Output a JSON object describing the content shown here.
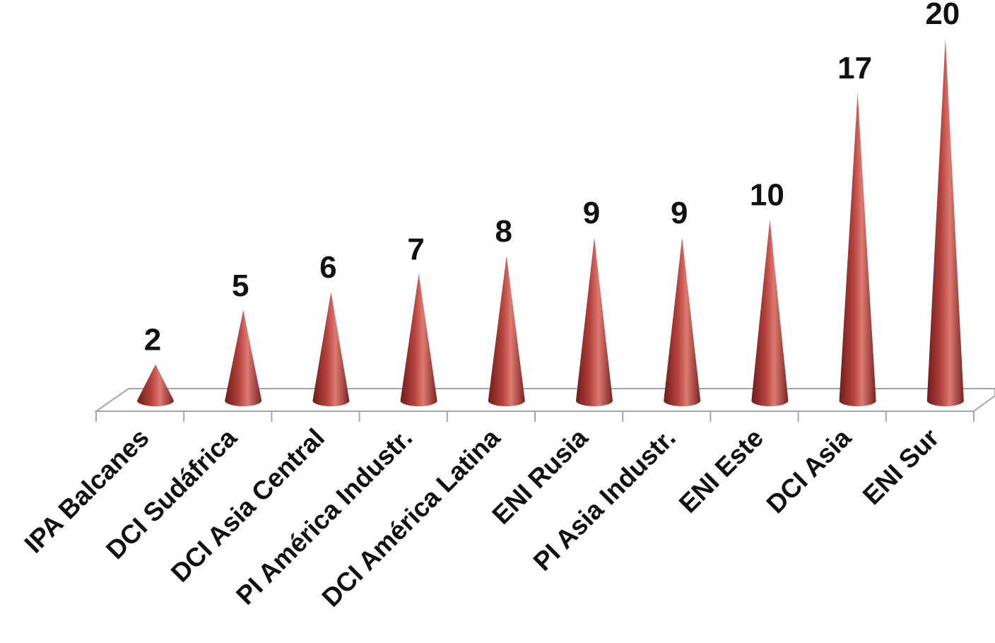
{
  "chart_data": {
    "type": "bar",
    "style": "3d-cone",
    "categories": [
      "IPA Balcanes",
      "DCI Sudáfrica",
      "DCI Asia Central",
      "PI América Industr.",
      "DCI América Latina",
      "ENI Rusia",
      "PI Asia Industr.",
      "ENI Este",
      "DCI Asia",
      "ENI Sur"
    ],
    "values": [
      2,
      5,
      6,
      7,
      8,
      9,
      9,
      10,
      17,
      20
    ],
    "title": "",
    "xlabel": "",
    "ylabel": "",
    "ylim": [
      0,
      20
    ],
    "grid": false,
    "legend": "none",
    "data_labels": true,
    "colors": {
      "cone_dark": "#6e1d1b",
      "cone_mid": "#b5413c",
      "cone_light": "#dd7a72",
      "floor": "#ffffff",
      "axis": "#a6a6a6",
      "text": "#111111"
    }
  }
}
